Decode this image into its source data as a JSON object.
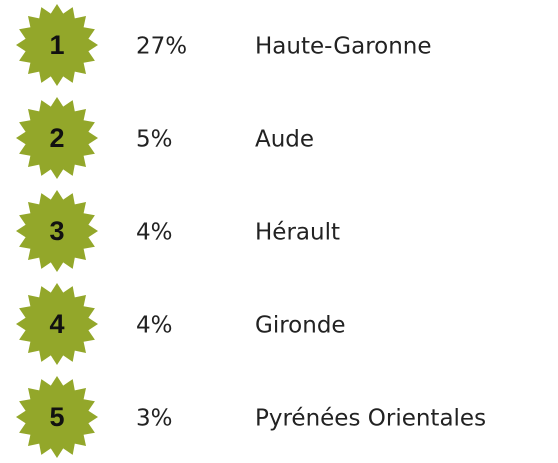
{
  "items": [
    {
      "rank": "1",
      "percent": "27%",
      "name": "Haute-Garonne"
    },
    {
      "rank": "2",
      "percent": "5%",
      "name": "Aude"
    },
    {
      "rank": "3",
      "percent": "4%",
      "name": "Hérault"
    },
    {
      "rank": "4",
      "percent": "4%",
      "name": "Gironde"
    },
    {
      "rank": "5",
      "percent": "3%",
      "name": "Pyrénées Orientales"
    }
  ]
}
